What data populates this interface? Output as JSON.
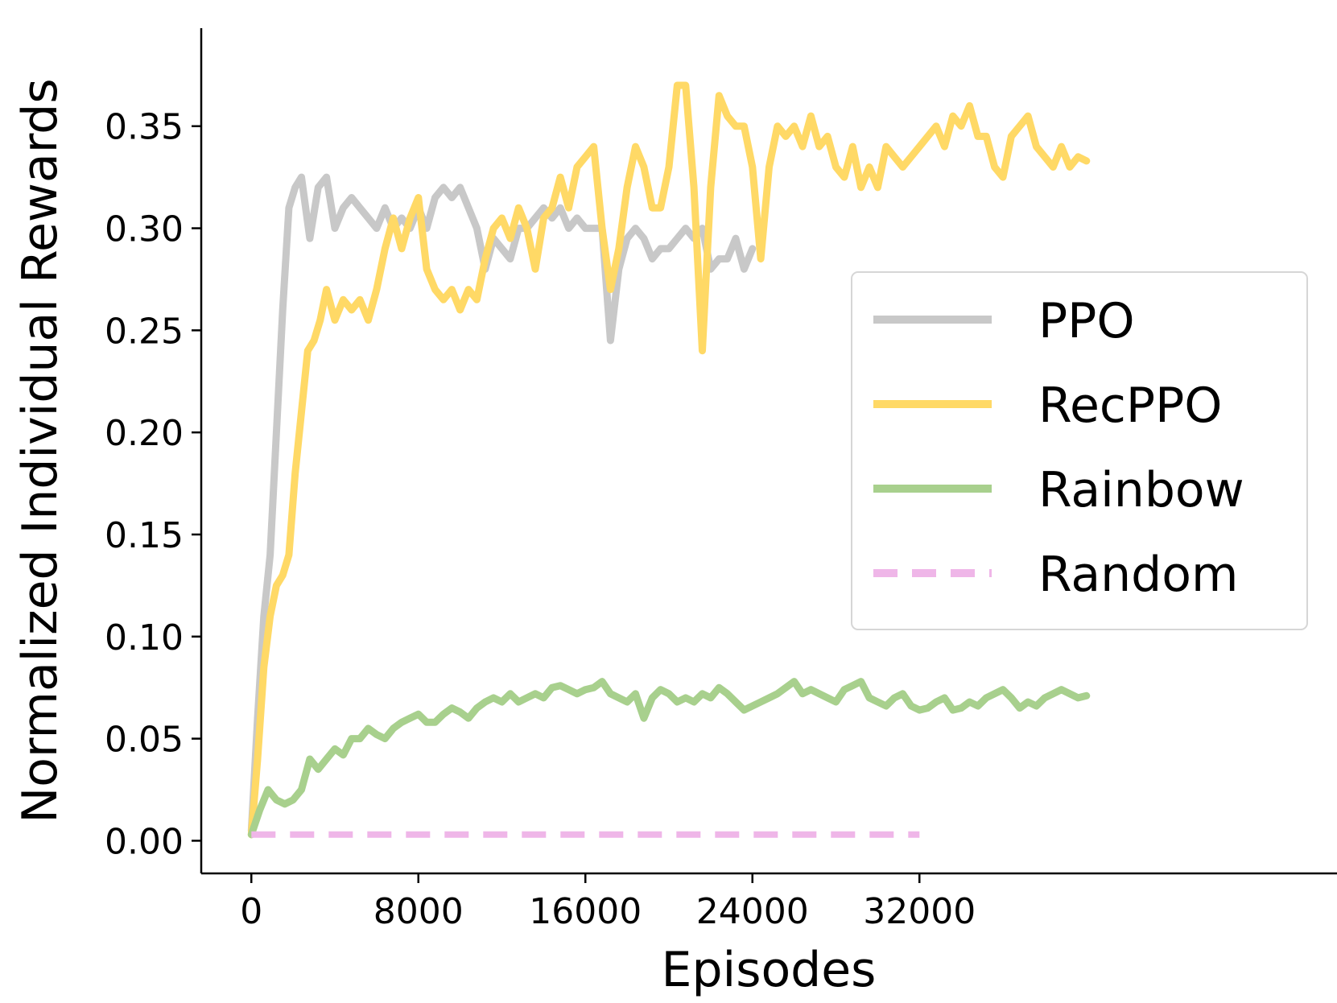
{
  "chart_data": {
    "type": "line",
    "title": "",
    "xlabel": "Episodes",
    "ylabel": "Normalized Individual Rewards",
    "xlim": [
      -2400,
      52000
    ],
    "ylim": [
      -0.016,
      0.398
    ],
    "xticks": [
      0,
      8000,
      16000,
      24000,
      32000
    ],
    "xtick_labels": [
      "0",
      "8000",
      "16000",
      "24000",
      "32000"
    ],
    "yticks": [
      0.0,
      0.05,
      0.1,
      0.15,
      0.2,
      0.25,
      0.3,
      0.35
    ],
    "ytick_labels": [
      "0.00",
      "0.05",
      "0.10",
      "0.15",
      "0.20",
      "0.25",
      "0.30",
      "0.35"
    ],
    "grid": false,
    "legend_position": "center-right",
    "series": [
      {
        "name": "PPO",
        "color": "#c8c8c8",
        "style": "solid",
        "x": [
          0,
          300,
          600,
          900,
          1200,
          1500,
          1800,
          2100,
          2400,
          2800,
          3200,
          3600,
          4000,
          4400,
          4800,
          5200,
          5600,
          6000,
          6400,
          6800,
          7200,
          7600,
          8000,
          8400,
          8800,
          9200,
          9600,
          10000,
          10400,
          10800,
          11200,
          11600,
          12000,
          12400,
          12800,
          13200,
          13600,
          14000,
          14400,
          14800,
          15200,
          15600,
          16000,
          16400,
          16800,
          17200,
          17600,
          18000,
          18400,
          18800,
          19200,
          19600,
          20000,
          20400,
          20800,
          21200,
          21600,
          22000,
          22400,
          22800,
          23200,
          23600,
          24000
        ],
        "values": [
          0.005,
          0.06,
          0.11,
          0.14,
          0.2,
          0.26,
          0.31,
          0.32,
          0.325,
          0.295,
          0.32,
          0.325,
          0.3,
          0.31,
          0.315,
          0.31,
          0.305,
          0.3,
          0.31,
          0.3,
          0.305,
          0.3,
          0.31,
          0.3,
          0.315,
          0.32,
          0.315,
          0.32,
          0.31,
          0.3,
          0.28,
          0.295,
          0.29,
          0.285,
          0.3,
          0.3,
          0.305,
          0.31,
          0.305,
          0.31,
          0.3,
          0.305,
          0.3,
          0.3,
          0.3,
          0.245,
          0.28,
          0.295,
          0.3,
          0.295,
          0.285,
          0.29,
          0.29,
          0.295,
          0.3,
          0.295,
          0.3,
          0.28,
          0.285,
          0.285,
          0.295,
          0.28,
          0.29
        ]
      },
      {
        "name": "RecPPO",
        "color": "#ffd966",
        "style": "solid",
        "x": [
          0,
          300,
          600,
          900,
          1200,
          1500,
          1800,
          2100,
          2400,
          2700,
          3000,
          3300,
          3600,
          4000,
          4400,
          4800,
          5200,
          5600,
          6000,
          6400,
          6800,
          7200,
          7600,
          8000,
          8400,
          8800,
          9200,
          9600,
          10000,
          10400,
          10800,
          11200,
          11600,
          12000,
          12400,
          12800,
          13200,
          13600,
          14000,
          14400,
          14800,
          15200,
          15600,
          16000,
          16400,
          16800,
          17200,
          17600,
          18000,
          18400,
          18800,
          19200,
          19600,
          20000,
          20400,
          20800,
          21200,
          21600,
          22000,
          22400,
          22800,
          23200,
          23600,
          24000,
          24400,
          24800,
          25200,
          25600,
          26000,
          26400,
          26800,
          27200,
          27600,
          28000,
          28400,
          28800,
          29200,
          29600,
          30000,
          30400,
          30800,
          31200,
          31600,
          32000,
          32400,
          32800,
          33200,
          33600,
          34000,
          34400,
          34800,
          35200,
          35600,
          36000,
          36400,
          36800,
          37200,
          37600,
          38000,
          38400,
          38800,
          39200,
          39600,
          40000
        ],
        "values": [
          0.003,
          0.04,
          0.085,
          0.11,
          0.125,
          0.13,
          0.14,
          0.18,
          0.21,
          0.24,
          0.245,
          0.255,
          0.27,
          0.255,
          0.265,
          0.26,
          0.265,
          0.255,
          0.27,
          0.29,
          0.305,
          0.29,
          0.305,
          0.315,
          0.28,
          0.27,
          0.265,
          0.27,
          0.26,
          0.27,
          0.265,
          0.285,
          0.3,
          0.305,
          0.295,
          0.31,
          0.3,
          0.28,
          0.305,
          0.31,
          0.325,
          0.31,
          0.33,
          0.335,
          0.34,
          0.3,
          0.27,
          0.29,
          0.32,
          0.34,
          0.33,
          0.31,
          0.31,
          0.33,
          0.37,
          0.37,
          0.32,
          0.24,
          0.32,
          0.365,
          0.355,
          0.35,
          0.35,
          0.33,
          0.285,
          0.33,
          0.35,
          0.345,
          0.35,
          0.34,
          0.355,
          0.34,
          0.345,
          0.33,
          0.325,
          0.34,
          0.32,
          0.33,
          0.32,
          0.34,
          0.335,
          0.33,
          0.335,
          0.34,
          0.345,
          0.35,
          0.34,
          0.355,
          0.35,
          0.36,
          0.345,
          0.345,
          0.33,
          0.325,
          0.345,
          0.35,
          0.355,
          0.34,
          0.335,
          0.33,
          0.34,
          0.33,
          0.335,
          0.333
        ]
      },
      {
        "name": "Rainbow",
        "color": "#a8d08d",
        "style": "solid",
        "x": [
          0,
          400,
          800,
          1200,
          1600,
          2000,
          2400,
          2800,
          3200,
          3600,
          4000,
          4400,
          4800,
          5200,
          5600,
          6000,
          6400,
          6800,
          7200,
          7600,
          8000,
          8400,
          8800,
          9200,
          9600,
          10000,
          10400,
          10800,
          11200,
          11600,
          12000,
          12400,
          12800,
          13200,
          13600,
          14000,
          14400,
          14800,
          15200,
          15600,
          16000,
          16400,
          16800,
          17200,
          17600,
          18000,
          18400,
          18800,
          19200,
          19600,
          20000,
          20400,
          20800,
          21200,
          21600,
          22000,
          22400,
          22800,
          23200,
          23600,
          24000,
          24400,
          24800,
          25200,
          25600,
          26000,
          26400,
          26800,
          27200,
          27600,
          28000,
          28400,
          28800,
          29200,
          29600,
          30000,
          30400,
          30800,
          31200,
          31600,
          32000,
          32400,
          32800,
          33200,
          33600,
          34000,
          34400,
          34800,
          35200,
          35600,
          36000,
          36400,
          36800,
          37200,
          37600,
          38000,
          38400,
          38800,
          39200,
          39600,
          40000
        ],
        "values": [
          0.003,
          0.015,
          0.025,
          0.02,
          0.018,
          0.02,
          0.025,
          0.04,
          0.035,
          0.04,
          0.045,
          0.042,
          0.05,
          0.05,
          0.055,
          0.052,
          0.05,
          0.055,
          0.058,
          0.06,
          0.062,
          0.058,
          0.058,
          0.062,
          0.065,
          0.063,
          0.06,
          0.065,
          0.068,
          0.07,
          0.068,
          0.072,
          0.068,
          0.07,
          0.072,
          0.07,
          0.075,
          0.076,
          0.074,
          0.072,
          0.074,
          0.075,
          0.078,
          0.072,
          0.07,
          0.068,
          0.072,
          0.06,
          0.07,
          0.074,
          0.072,
          0.068,
          0.07,
          0.068,
          0.072,
          0.07,
          0.075,
          0.072,
          0.068,
          0.064,
          0.066,
          0.068,
          0.07,
          0.072,
          0.075,
          0.078,
          0.072,
          0.074,
          0.072,
          0.07,
          0.068,
          0.074,
          0.076,
          0.078,
          0.07,
          0.068,
          0.066,
          0.07,
          0.072,
          0.066,
          0.064,
          0.065,
          0.068,
          0.07,
          0.064,
          0.065,
          0.068,
          0.066,
          0.07,
          0.072,
          0.074,
          0.07,
          0.065,
          0.068,
          0.066,
          0.07,
          0.072,
          0.074,
          0.072,
          0.07,
          0.071
        ]
      },
      {
        "name": "Random",
        "color": "#efb6e8",
        "style": "dashed",
        "x": [
          0,
          32000
        ],
        "values": [
          0.003,
          0.003
        ]
      }
    ]
  }
}
